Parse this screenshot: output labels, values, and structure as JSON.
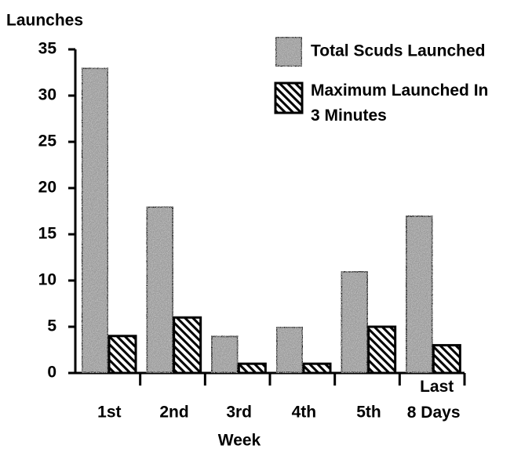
{
  "chart_data": {
    "type": "bar",
    "y_label": "Launches",
    "x_label": "Week",
    "categories": [
      "1st",
      "2nd",
      "3rd",
      "4th",
      "5th",
      "Last 8 Days"
    ],
    "series": [
      {
        "name": "Total Scuds Launched",
        "color": "#9a9a9a",
        "values": [
          33,
          18,
          4,
          5,
          11,
          17
        ]
      },
      {
        "name": "Maximum Launched In 3 Minutes",
        "color": "#000000",
        "values": [
          4,
          6,
          1,
          1,
          5,
          3
        ]
      }
    ],
    "ylim": [
      0,
      35
    ],
    "yticks": [
      0,
      5,
      10,
      15,
      20,
      25,
      30,
      35
    ]
  }
}
